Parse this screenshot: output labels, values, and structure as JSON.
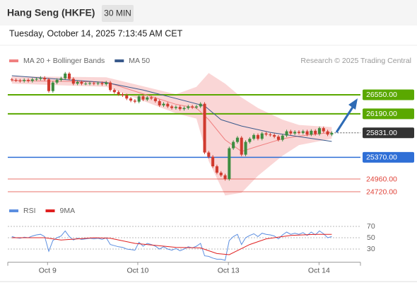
{
  "header": {
    "title": "Hang Seng (HKFE)",
    "interval": "30 MIN",
    "timestamp": "Tuesday, October 14, 2025 7:13:45 AM CET",
    "credit": "Research © 2025 Trading Central"
  },
  "chart_data": [
    {
      "type": "candlestick",
      "legend": "top-left",
      "up_color": "#3d8c40",
      "down_color": "#d03a2e",
      "xlim": [
        -1,
        85
      ],
      "ylim": [
        24600,
        27070
      ],
      "open": [
        26840,
        26830,
        26820,
        26810,
        26830,
        26810,
        26840,
        26850,
        26870,
        26840,
        26620,
        26780,
        26830,
        26860,
        26950,
        26850,
        26760,
        26790,
        26760,
        26760,
        26770,
        26760,
        26770,
        26750,
        26780,
        26640,
        26600,
        26560,
        26540,
        26480,
        26440,
        26420,
        26520,
        26460,
        26500,
        26480,
        26430,
        26350,
        26380,
        26330,
        26300,
        26320,
        26280,
        26300,
        26330,
        26310,
        26330,
        26380,
        25460,
        25380,
        25200,
        25080,
        25030,
        24960,
        25540,
        25660,
        25740,
        25420,
        25660,
        25720,
        25790,
        25720,
        25820,
        25800,
        25790,
        25760,
        25700,
        25780,
        25860,
        25820,
        25850,
        25830,
        25860,
        25800,
        25870,
        25810,
        25920,
        25860,
        25800
      ],
      "high": [
        26870,
        26860,
        26850,
        26860,
        26860,
        26870,
        26880,
        26900,
        26900,
        26870,
        26810,
        26860,
        26890,
        26980,
        26980,
        26880,
        26820,
        26820,
        26790,
        26800,
        26800,
        26800,
        26800,
        26810,
        26810,
        26670,
        26630,
        26590,
        26570,
        26510,
        26470,
        26550,
        26550,
        26530,
        26530,
        26510,
        26460,
        26410,
        26410,
        26360,
        26350,
        26350,
        26330,
        26360,
        26360,
        26360,
        26410,
        26410,
        25490,
        25410,
        25230,
        25110,
        25060,
        25570,
        25690,
        25770,
        25770,
        25690,
        25750,
        25820,
        25820,
        25850,
        25850,
        25830,
        25820,
        25790,
        25810,
        25890,
        25890,
        25880,
        25880,
        25890,
        25890,
        25900,
        25900,
        25950,
        25950,
        25890,
        25860
      ],
      "low": [
        26800,
        26790,
        26780,
        26780,
        26780,
        26780,
        26810,
        26820,
        26810,
        26590,
        26590,
        26750,
        26800,
        26830,
        26820,
        26730,
        26730,
        26730,
        26730,
        26730,
        26730,
        26730,
        26720,
        26720,
        26610,
        26570,
        26530,
        26510,
        26450,
        26410,
        26390,
        26390,
        26430,
        26430,
        26450,
        26400,
        26320,
        26320,
        26300,
        26270,
        26270,
        26250,
        26250,
        26270,
        26280,
        26280,
        26300,
        25430,
        25350,
        25170,
        25050,
        25000,
        24930,
        24930,
        25510,
        25630,
        25390,
        25390,
        25630,
        25690,
        25690,
        25690,
        25770,
        25760,
        25730,
        25670,
        25670,
        25750,
        25790,
        25790,
        25800,
        25800,
        25770,
        25770,
        25780,
        25780,
        25830,
        25770,
        25770
      ],
      "close": [
        26830,
        26820,
        26810,
        26830,
        26810,
        26840,
        26850,
        26870,
        26840,
        26620,
        26780,
        26830,
        26860,
        26950,
        26850,
        26760,
        26790,
        26760,
        26760,
        26770,
        26760,
        26770,
        26750,
        26780,
        26640,
        26600,
        26560,
        26540,
        26480,
        26440,
        26420,
        26520,
        26460,
        26500,
        26480,
        26430,
        26350,
        26380,
        26330,
        26300,
        26320,
        26280,
        26300,
        26330,
        26310,
        26330,
        26380,
        25460,
        25380,
        25200,
        25080,
        25030,
        24960,
        25540,
        25660,
        25740,
        25420,
        25660,
        25720,
        25790,
        25720,
        25820,
        25800,
        25790,
        25760,
        25700,
        25780,
        25860,
        25820,
        25850,
        25830,
        25860,
        25800,
        25870,
        25810,
        25920,
        25860,
        25800,
        25831
      ],
      "series": [
        {
          "name": "MA 20 + Bollinger Bands",
          "color": "#f08080",
          "band_color": "#f9cfcf",
          "x": [
            0,
            23,
            40,
            45,
            48,
            52,
            56,
            60,
            66,
            70,
            78
          ],
          "values": [
            26820,
            26790,
            26370,
            26300,
            26080,
            25700,
            25480,
            25580,
            25720,
            25770,
            25840
          ],
          "upper": [
            26900,
            26880,
            26560,
            26700,
            26960,
            26760,
            26500,
            26300,
            26080,
            25980,
            25940
          ],
          "lower": [
            26760,
            26700,
            26200,
            26100,
            25300,
            24650,
            24700,
            25020,
            25400,
            25600,
            25720
          ]
        },
        {
          "name": "MA 50",
          "color": "#3a5a8c",
          "x": [
            0,
            14,
            23,
            32,
            40,
            47,
            51,
            56,
            63,
            70,
            78
          ],
          "values": [
            26910,
            26830,
            26780,
            26640,
            26480,
            26340,
            26080,
            25960,
            25840,
            25760,
            25670
          ]
        }
      ],
      "levels": [
        {
          "value": 26550,
          "label": "26550.00",
          "color": "#5aa800",
          "style": "box"
        },
        {
          "value": 26190,
          "label": "26190.00",
          "color": "#5aa800",
          "style": "box"
        },
        {
          "value": 25831,
          "label": "25831.00",
          "color": "#333333",
          "style": "current"
        },
        {
          "value": 25370,
          "label": "25370.00",
          "color": "#2f6fd6",
          "style": "box"
        },
        {
          "value": 24960,
          "label": "24960.00",
          "color": "#e0443a",
          "style": "text"
        },
        {
          "value": 24720,
          "label": "24720.00",
          "color": "#e0443a",
          "style": "text"
        }
      ]
    },
    {
      "type": "line",
      "legend": "top-left",
      "xlim": [
        -1,
        85
      ],
      "ylim": [
        8,
        88
      ],
      "yticks": [
        70,
        50,
        30
      ],
      "xticks": [
        {
          "value": 8.7,
          "label": "Oct 9"
        },
        {
          "value": 30.7,
          "label": "Oct 10"
        },
        {
          "value": 52.8,
          "label": "Oct 13"
        },
        {
          "value": 74.9,
          "label": "Oct 14"
        }
      ],
      "series": [
        {
          "name": "RSI",
          "color": "#5b8ee0",
          "x": [
            0,
            1,
            2,
            3,
            4,
            5,
            6,
            7,
            8,
            9,
            10,
            11,
            12,
            13,
            14,
            15,
            16,
            17,
            18,
            19,
            20,
            21,
            22,
            23,
            24,
            25,
            26,
            27,
            28,
            29,
            30,
            31,
            32,
            33,
            34,
            35,
            36,
            37,
            38,
            39,
            40,
            41,
            42,
            43,
            44,
            45,
            46,
            47,
            48,
            49,
            50,
            51,
            52,
            53,
            54,
            55,
            56,
            57,
            58,
            59,
            60,
            61,
            62,
            63,
            64,
            65,
            66,
            67,
            68,
            69,
            70,
            71,
            72,
            73,
            74,
            75,
            76,
            77,
            78
          ],
          "values": [
            52,
            50,
            49,
            51,
            50,
            53,
            55,
            56,
            52,
            26,
            45,
            50,
            53,
            62,
            52,
            46,
            49,
            47,
            48,
            49,
            48,
            49,
            47,
            50,
            38,
            36,
            34,
            33,
            30,
            29,
            28,
            42,
            35,
            40,
            38,
            35,
            30,
            34,
            30,
            28,
            31,
            27,
            30,
            34,
            32,
            35,
            40,
            18,
            17,
            14,
            12,
            12,
            10,
            45,
            52,
            56,
            38,
            50,
            54,
            57,
            52,
            58,
            56,
            55,
            53,
            48,
            55,
            60,
            56,
            58,
            56,
            59,
            54,
            60,
            55,
            62,
            57,
            50,
            52
          ]
        },
        {
          "name": "9MA",
          "color": "#e02020",
          "x": [
            0,
            8,
            12,
            20,
            24,
            30,
            40,
            46,
            50,
            53,
            58,
            62,
            68,
            74,
            78
          ],
          "values": [
            50,
            50,
            46,
            50,
            49,
            40,
            33,
            32,
            22,
            20,
            38,
            48,
            54,
            56,
            56
          ]
        }
      ]
    }
  ]
}
